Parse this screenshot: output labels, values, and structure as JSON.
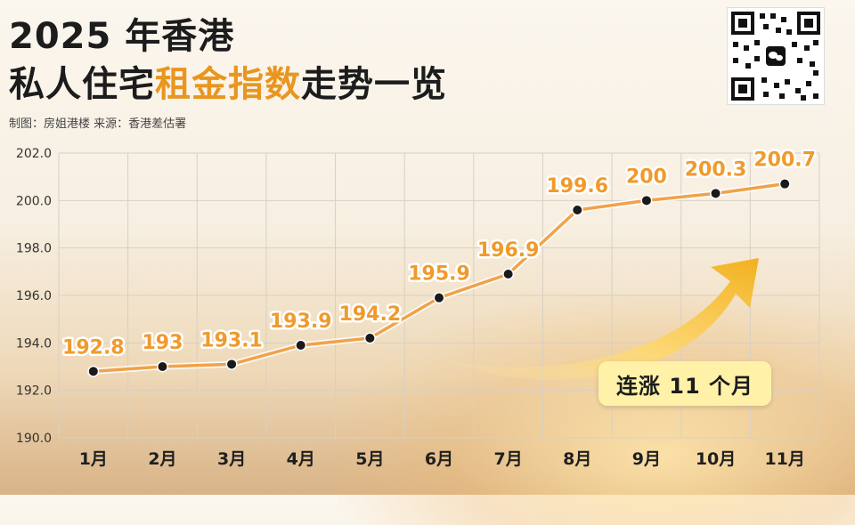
{
  "header": {
    "title_line1": "2025 年香港",
    "title_line2_a": "私人住宅",
    "title_line2_highlight": "租金指数",
    "title_line2_b": "走势一览",
    "credits": "制图：房姐港楼   来源：香港差估署",
    "accent_color": "#e8961f"
  },
  "badge": {
    "text": "连涨 11 个月"
  },
  "chart_data": {
    "type": "line",
    "categories": [
      "1月",
      "2月",
      "3月",
      "4月",
      "5月",
      "6月",
      "7月",
      "8月",
      "9月",
      "10月",
      "11月"
    ],
    "values": [
      192.8,
      193,
      193.1,
      193.9,
      194.2,
      195.9,
      196.9,
      199.6,
      200,
      200.3,
      200.7
    ],
    "data_labels": [
      "192.8",
      "193",
      "193.1",
      "193.9",
      "194.2",
      "195.9",
      "196.9",
      "199.6",
      "200",
      "200.3",
      "200.7"
    ],
    "y_ticks": [
      "190.0",
      "192.0",
      "194.0",
      "196.0",
      "198.0",
      "200.0",
      "202.0"
    ],
    "ylim": [
      190,
      202
    ],
    "grid": true,
    "line_color": "#f0a24a",
    "marker_color": "#1a1a1a"
  }
}
